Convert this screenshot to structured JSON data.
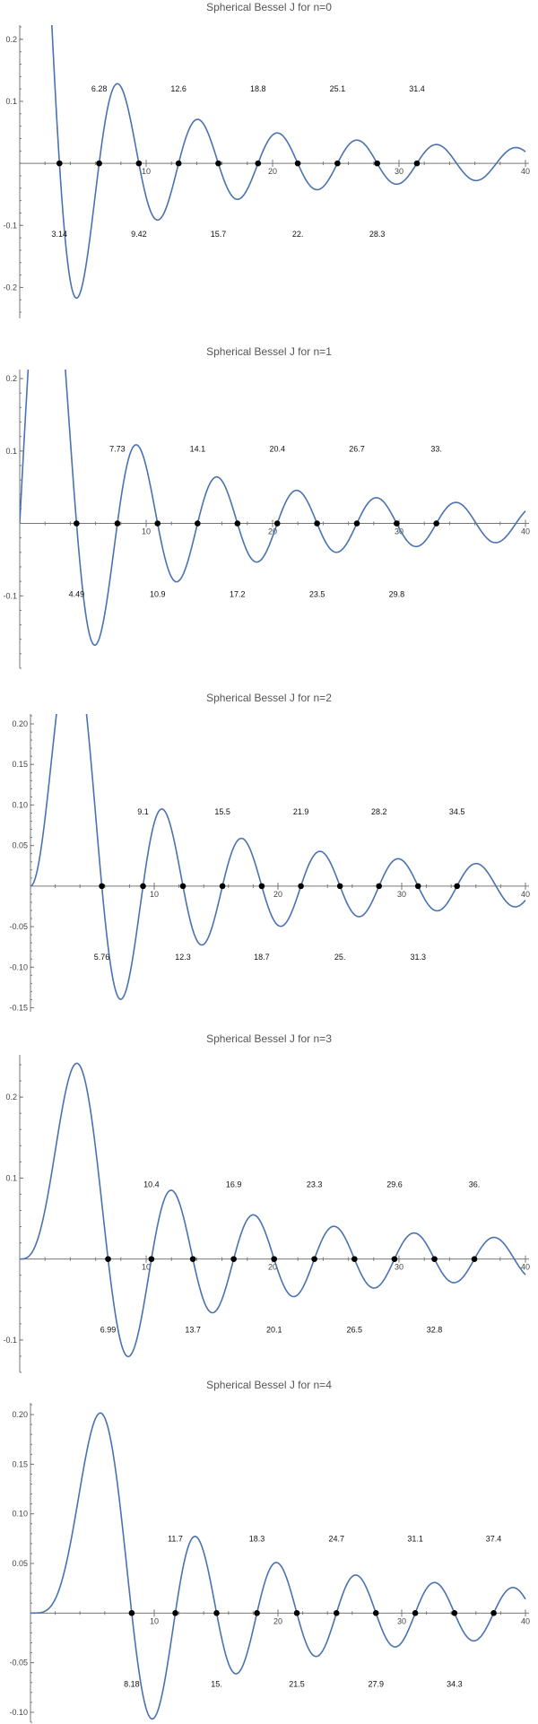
{
  "chart_data": [
    {
      "type": "line",
      "title": "Spherical Bessel J for n=0",
      "n": 0,
      "xlim": [
        0,
        40
      ],
      "ylim": [
        -0.25,
        0.22
      ],
      "xticks": [
        10,
        20,
        30,
        40
      ],
      "yticks": [
        0.2,
        0.1,
        -0.1,
        -0.2
      ],
      "ytick_labels": [
        "0.2",
        "0.1",
        "-0.1",
        "-0.2"
      ],
      "zeros": [
        3.14159,
        6.28319,
        9.42478,
        12.5664,
        15.708,
        18.8496,
        21.9911,
        25.1327,
        28.2743,
        31.4159
      ],
      "zero_labels": [
        "3.14",
        "6.28",
        "9.42",
        "12.6",
        "15.7",
        "18.8",
        "22.",
        "25.1",
        "28.3",
        "31.4"
      ],
      "curve_color": "#4a72b0"
    },
    {
      "type": "line",
      "title": "Spherical Bessel J for n=1",
      "n": 1,
      "xlim": [
        0,
        40
      ],
      "ylim": [
        -0.2,
        0.21
      ],
      "xticks": [
        10,
        20,
        30,
        40
      ],
      "yticks": [
        0.2,
        0.1,
        -0.1
      ],
      "ytick_labels": [
        "0.2",
        "0.1",
        "-0.1"
      ],
      "zeros": [
        4.49341,
        7.72525,
        10.9041,
        14.0662,
        17.2208,
        20.3713,
        23.5195,
        26.6661,
        29.8116,
        32.9564
      ],
      "zero_labels": [
        "4.49",
        "7.73",
        "10.9",
        "14.1",
        "17.2",
        "20.4",
        "23.5",
        "26.7",
        "29.8",
        "33."
      ],
      "curve_color": "#4a72b0"
    },
    {
      "type": "line",
      "title": "Spherical Bessel J for n=2",
      "n": 2,
      "xlim": [
        0,
        40
      ],
      "ylim": [
        -0.155,
        0.21
      ],
      "xticks": [
        10,
        20,
        30,
        40
      ],
      "yticks": [
        0.2,
        0.15,
        0.1,
        0.05,
        -0.05,
        -0.1,
        -0.15
      ],
      "ytick_labels": [
        "0.20",
        "0.15",
        "0.10",
        "0.05",
        "-0.05",
        "-0.10",
        "-0.15"
      ],
      "zeros": [
        5.76346,
        9.09501,
        12.3229,
        15.5146,
        18.689,
        21.8539,
        25.0128,
        28.1678,
        31.3201,
        34.4704
      ],
      "zero_labels": [
        "5.76",
        "9.1",
        "12.3",
        "15.5",
        "18.7",
        "21.9",
        "25.",
        "28.2",
        "31.3",
        "34.5"
      ],
      "curve_color": "#4a72b0"
    },
    {
      "type": "line",
      "title": "Spherical Bessel J for n=3",
      "n": 3,
      "xlim": [
        0,
        40
      ],
      "ylim": [
        -0.14,
        0.25
      ],
      "xticks": [
        10,
        20,
        30,
        40
      ],
      "yticks": [
        0.2,
        0.1,
        -0.1
      ],
      "ytick_labels": [
        "0.2",
        "0.1",
        "-0.1"
      ],
      "zeros": [
        6.98793,
        10.4171,
        13.698,
        16.9236,
        20.1218,
        23.3042,
        26.4768,
        29.6426,
        32.8037,
        35.9614
      ],
      "zero_labels": [
        "6.99",
        "10.4",
        "13.7",
        "16.9",
        "20.1",
        "23.3",
        "26.5",
        "29.6",
        "32.8",
        "36."
      ],
      "curve_color": "#4a72b0"
    },
    {
      "type": "line",
      "title": "Spherical Bessel J for n=4",
      "n": 4,
      "xlim": [
        0,
        40
      ],
      "ylim": [
        -0.11,
        0.21
      ],
      "xticks": [
        10,
        20,
        30,
        40
      ],
      "yticks": [
        0.2,
        0.15,
        0.1,
        0.05,
        -0.05,
        -0.1
      ],
      "ytick_labels": [
        "0.20",
        "0.15",
        "0.10",
        "0.05",
        "-0.05",
        "-0.10"
      ],
      "zeros": [
        8.18256,
        11.7049,
        15.0397,
        18.3012,
        21.5254,
        24.7276,
        27.9156,
        31.0939,
        34.2654,
        37.4317
      ],
      "zero_labels": [
        "8.18",
        "11.7",
        "15.",
        "18.3",
        "21.5",
        "24.7",
        "27.9",
        "31.1",
        "34.3",
        "37.4"
      ],
      "curve_color": "#4a72b0"
    }
  ]
}
